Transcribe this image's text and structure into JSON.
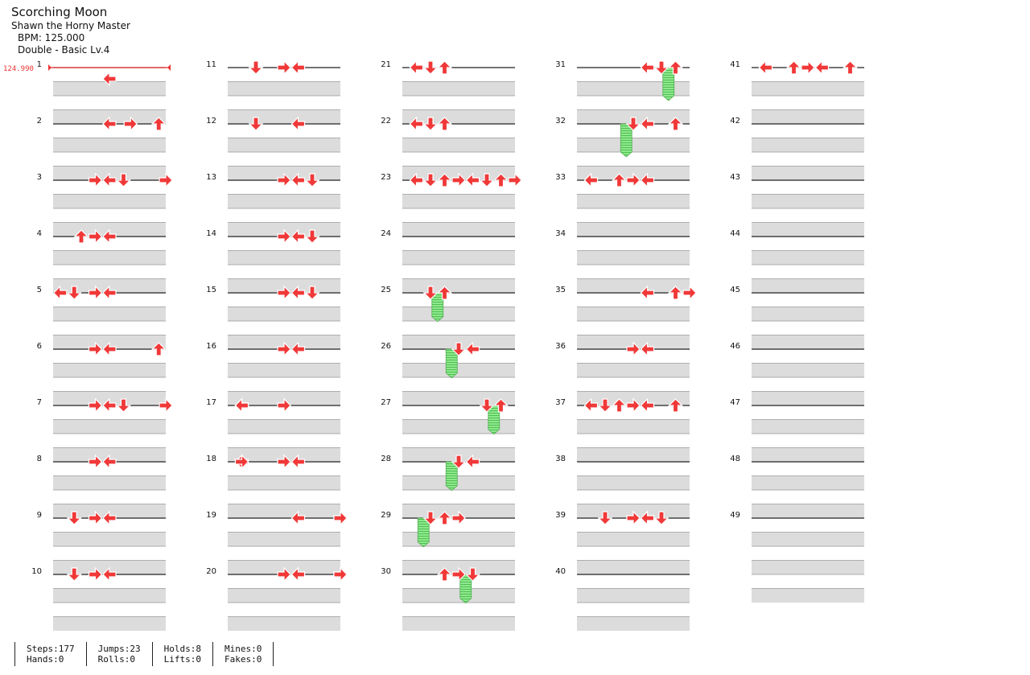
{
  "song": {
    "title": "Scorching Moon",
    "artist": "Shawn the Horny Master",
    "bpm_text": "BPM: 125.000",
    "difficulty_text": "Double - Basic  Lv.4",
    "bpm_marker": "124.990"
  },
  "colors": {
    "arrow": "#f03838",
    "hold": "#8ee88e",
    "lane": "#dcdcdc"
  },
  "measure_numbers": [
    1,
    2,
    3,
    4,
    5,
    6,
    7,
    8,
    9,
    10,
    11,
    12,
    13,
    14,
    15,
    16,
    17,
    18,
    19,
    20,
    21,
    22,
    23,
    24,
    25,
    26,
    27,
    28,
    29,
    30,
    31,
    32,
    33,
    34,
    35,
    36,
    37,
    38,
    39,
    40,
    41,
    42,
    43,
    44,
    45,
    46,
    47,
    48,
    49
  ],
  "notes": [
    [
      2,
      3.5,
      "L"
    ],
    [
      10,
      3.5,
      "L"
    ],
    [
      10,
      5,
      "R"
    ],
    [
      10,
      7,
      "U"
    ],
    [
      20,
      7.5,
      "R"
    ],
    [
      20,
      3.5,
      "L"
    ],
    [
      20,
      4.5,
      "D"
    ],
    [
      20,
      2.5,
      "R"
    ],
    [
      30,
      2.5,
      "R"
    ],
    [
      30,
      3.5,
      "L"
    ],
    [
      30,
      1.5,
      "U"
    ],
    [
      40,
      0,
      "L"
    ],
    [
      40,
      2.5,
      "R"
    ],
    [
      40,
      1,
      "D"
    ],
    [
      40,
      3.5,
      "L"
    ],
    [
      50,
      3.5,
      "L"
    ],
    [
      50,
      2.5,
      "R"
    ],
    [
      50,
      7,
      "U"
    ],
    [
      60,
      7.5,
      "R"
    ],
    [
      60,
      3.5,
      "L"
    ],
    [
      60,
      4.5,
      "D"
    ],
    [
      60,
      2.5,
      "R"
    ],
    [
      70,
      2.5,
      "R"
    ],
    [
      70,
      3.5,
      "L"
    ],
    [
      80,
      3.5,
      "L"
    ],
    [
      80,
      1,
      "D"
    ],
    [
      80,
      2.5,
      "R"
    ],
    [
      80,
      1,
      "D"
    ],
    [
      90,
      3.5,
      "L"
    ],
    [
      90,
      1,
      "D"
    ],
    [
      90,
      2.5,
      "R"
    ],
    [
      90,
      1,
      "D"
    ],
    [
      100,
      4.5,
      "L"
    ],
    [
      100,
      1.5,
      "D"
    ],
    [
      100,
      3.5,
      "R"
    ],
    [
      100,
      1.5,
      "D"
    ],
    [
      110,
      4.5,
      "L"
    ],
    [
      110,
      1.5,
      "D"
    ],
    [
      120,
      3.5,
      "R"
    ],
    [
      120,
      5.5,
      "D"
    ],
    [
      120,
      4.5,
      "L"
    ],
    [
      120,
      5.5,
      "D"
    ],
    [
      130,
      3.5,
      "R"
    ],
    [
      130,
      5.5,
      "D"
    ],
    [
      130,
      4.5,
      "L"
    ],
    [
      130,
      5.5,
      "D"
    ],
    [
      140,
      3.5,
      "R"
    ],
    [
      140,
      5.5,
      "D"
    ],
    [
      140,
      4.5,
      "L"
    ],
    [
      140,
      5.5,
      "D"
    ],
    [
      150,
      3.5,
      "R"
    ],
    [
      150,
      4.5,
      "L"
    ],
    [
      160,
      0.5,
      "L"
    ],
    [
      160,
      0.5,
      "L"
    ],
    [
      160,
      3.5,
      "R"
    ],
    [
      160,
      0.5,
      "L"
    ],
    [
      160,
      0.5,
      "L"
    ],
    [
      160,
      3.5,
      "R"
    ],
    [
      170,
      0.5,
      "L"
    ],
    [
      170,
      0.5,
      "R"
    ],
    [
      170,
      3.5,
      "R"
    ],
    [
      170,
      3.5,
      "R"
    ],
    [
      170,
      4.5,
      "L"
    ],
    [
      180,
      7.5,
      "R"
    ],
    [
      180,
      4.5,
      "L"
    ],
    [
      180,
      7.5,
      "R"
    ],
    [
      180,
      7.5,
      "R"
    ],
    [
      190,
      4.5,
      "L"
    ],
    [
      190,
      7.5,
      "R"
    ],
    [
      190,
      7.5,
      "R"
    ],
    [
      190,
      4.5,
      "L"
    ],
    [
      190,
      7.5,
      "R"
    ],
    [
      190,
      3.5,
      "R"
    ],
    [
      190,
      4.5,
      "L"
    ],
    [
      200,
      0.5,
      "L"
    ],
    [
      200,
      1.5,
      "D"
    ],
    [
      200,
      2.5,
      "U"
    ],
    [
      200,
      0.5,
      "L"
    ],
    [
      200,
      1.5,
      "D"
    ],
    [
      200,
      2.5,
      "U"
    ],
    [
      210,
      0.5,
      "L"
    ],
    [
      210,
      1.5,
      "D"
    ],
    [
      210,
      2.5,
      "U"
    ],
    [
      210,
      0.5,
      "L"
    ],
    [
      210,
      1.5,
      "D"
    ],
    [
      210,
      2.5,
      "U"
    ],
    [
      220,
      0.5,
      "L"
    ],
    [
      220,
      1.5,
      "D"
    ],
    [
      220,
      2.5,
      "U"
    ],
    [
      220,
      3.5,
      "R"
    ],
    [
      220,
      4.5,
      "L"
    ],
    [
      220,
      5.5,
      "D"
    ],
    [
      220,
      6.5,
      "U"
    ],
    [
      220,
      4.5,
      "L"
    ],
    [
      220,
      7.5,
      "R"
    ],
    [
      240,
      1.5,
      "D"
    ],
    [
      240,
      2.5,
      "U"
    ],
    [
      250,
      3.5,
      "D"
    ],
    [
      250,
      4.5,
      "L"
    ],
    [
      260,
      6.5,
      "U"
    ],
    [
      260,
      5.5,
      "D"
    ],
    [
      270,
      3.5,
      "D"
    ],
    [
      270,
      4.5,
      "L"
    ],
    [
      280,
      1.5,
      "D"
    ],
    [
      280,
      2.5,
      "U"
    ],
    [
      280,
      3.5,
      "R"
    ],
    [
      290,
      4.5,
      "D"
    ],
    [
      290,
      2.5,
      "U"
    ],
    [
      290,
      3.5,
      "R"
    ],
    [
      300,
      6.5,
      "U"
    ],
    [
      300,
      5.5,
      "D"
    ],
    [
      300,
      4.5,
      "L"
    ],
    [
      310,
      3.5,
      "D"
    ],
    [
      310,
      4.5,
      "L"
    ],
    [
      310,
      6.5,
      "U"
    ],
    [
      310,
      6.5,
      "U"
    ],
    [
      310,
      4.5,
      "L"
    ],
    [
      310,
      6.5,
      "U"
    ],
    [
      320,
      2.5,
      "U"
    ],
    [
      320,
      0.5,
      "L"
    ],
    [
      320,
      3.5,
      "R"
    ],
    [
      320,
      0.5,
      "L"
    ],
    [
      320,
      3.5,
      "R"
    ],
    [
      320,
      4.5,
      "L"
    ],
    [
      340,
      6.5,
      "U"
    ],
    [
      340,
      6.5,
      "U"
    ],
    [
      340,
      7.5,
      "R"
    ],
    [
      340,
      4.5,
      "L"
    ],
    [
      340,
      7.5,
      "R"
    ],
    [
      350,
      4.5,
      "L"
    ],
    [
      350,
      3.5,
      "R"
    ],
    [
      360,
      1.5,
      "D"
    ],
    [
      360,
      2.5,
      "U"
    ],
    [
      360,
      2.5,
      "U"
    ],
    [
      360,
      3.5,
      "R"
    ],
    [
      360,
      0.5,
      "L"
    ],
    [
      360,
      2.5,
      "U"
    ],
    [
      360,
      3.5,
      "R"
    ],
    [
      360,
      4.5,
      "L"
    ],
    [
      360,
      6.5,
      "U"
    ],
    [
      380,
      4.5,
      "L"
    ],
    [
      380,
      3.5,
      "R"
    ],
    [
      380,
      4.5,
      "L"
    ],
    [
      380,
      1.5,
      "D"
    ],
    [
      380,
      3.5,
      "R"
    ],
    [
      380,
      4.5,
      "L"
    ],
    [
      380,
      5.5,
      "D"
    ],
    [
      380,
      3.5,
      "R"
    ],
    [
      380,
      4.5,
      "L"
    ],
    [
      400,
      3.5,
      "R"
    ],
    [
      400,
      4.5,
      "L"
    ],
    [
      400,
      2.5,
      "U"
    ],
    [
      400,
      0.5,
      "L"
    ],
    [
      400,
      3.5,
      "R"
    ],
    [
      400,
      0.5,
      "L"
    ],
    [
      400,
      3.5,
      "R"
    ],
    [
      400,
      4.5,
      "L"
    ],
    [
      400,
      6.5,
      "U"
    ]
  ],
  "stats": [
    {
      "a": "Steps:177",
      "b": "Hands:0"
    },
    {
      "a": "Jumps:23",
      "b": "Rolls:0"
    },
    {
      "a": "Holds:8",
      "b": "Lifts:0"
    },
    {
      "a": "Mines:0",
      "b": "Fakes:0"
    }
  ]
}
